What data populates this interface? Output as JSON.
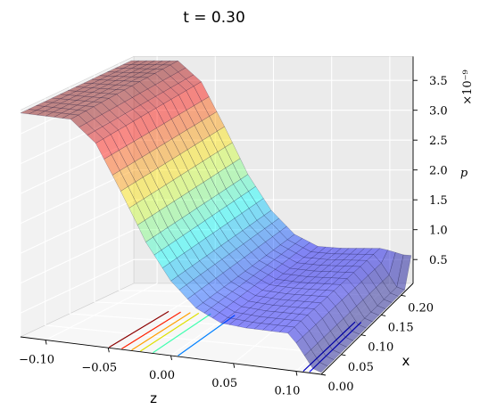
{
  "chart_data": {
    "type": "surface",
    "title": "t = 0.30",
    "xlabel": "z",
    "ylabel": "x",
    "zlabel": "p",
    "z_scale_label": "×10⁻⁹",
    "z_axis_range": [
      -0.12,
      0.12
    ],
    "x_axis_range": [
      0.0,
      0.23
    ],
    "p_axis_range": [
      0.1,
      3.9
    ],
    "z_ticks": [
      "−0.10",
      "−0.05",
      "0.00",
      "0.05",
      "0.10"
    ],
    "x_ticks": [
      "0.00",
      "0.05",
      "0.10",
      "0.15",
      "0.20"
    ],
    "p_ticks": [
      "0.5",
      "1.0",
      "1.5",
      "2.0",
      "2.5",
      "3.0",
      "3.5"
    ],
    "colormap": "jet",
    "grid": true,
    "surface_profile": {
      "description_z": [
        -0.12,
        -0.1,
        -0.08,
        -0.06,
        -0.04,
        -0.02,
        0.0,
        0.02,
        0.04,
        0.06,
        0.08,
        0.1,
        0.12
      ],
      "p": [
        3.85,
        3.85,
        3.85,
        3.5,
        2.75,
        1.95,
        1.35,
        0.95,
        0.75,
        0.72,
        0.72,
        0.72,
        0.72
      ]
    },
    "contour_levels": [
      {
        "z": -0.05,
        "color": "#8b0000"
      },
      {
        "z": -0.04,
        "color": "#ff2000"
      },
      {
        "z": -0.032,
        "color": "#ffa000"
      },
      {
        "z": -0.025,
        "color": "#e0e000"
      },
      {
        "z": -0.015,
        "color": "#40ffb0"
      },
      {
        "z": 0.005,
        "color": "#0080ff"
      },
      {
        "z": 0.105,
        "color": "#0000c0"
      },
      {
        "z": 0.11,
        "color": "#0000ff"
      }
    ]
  }
}
